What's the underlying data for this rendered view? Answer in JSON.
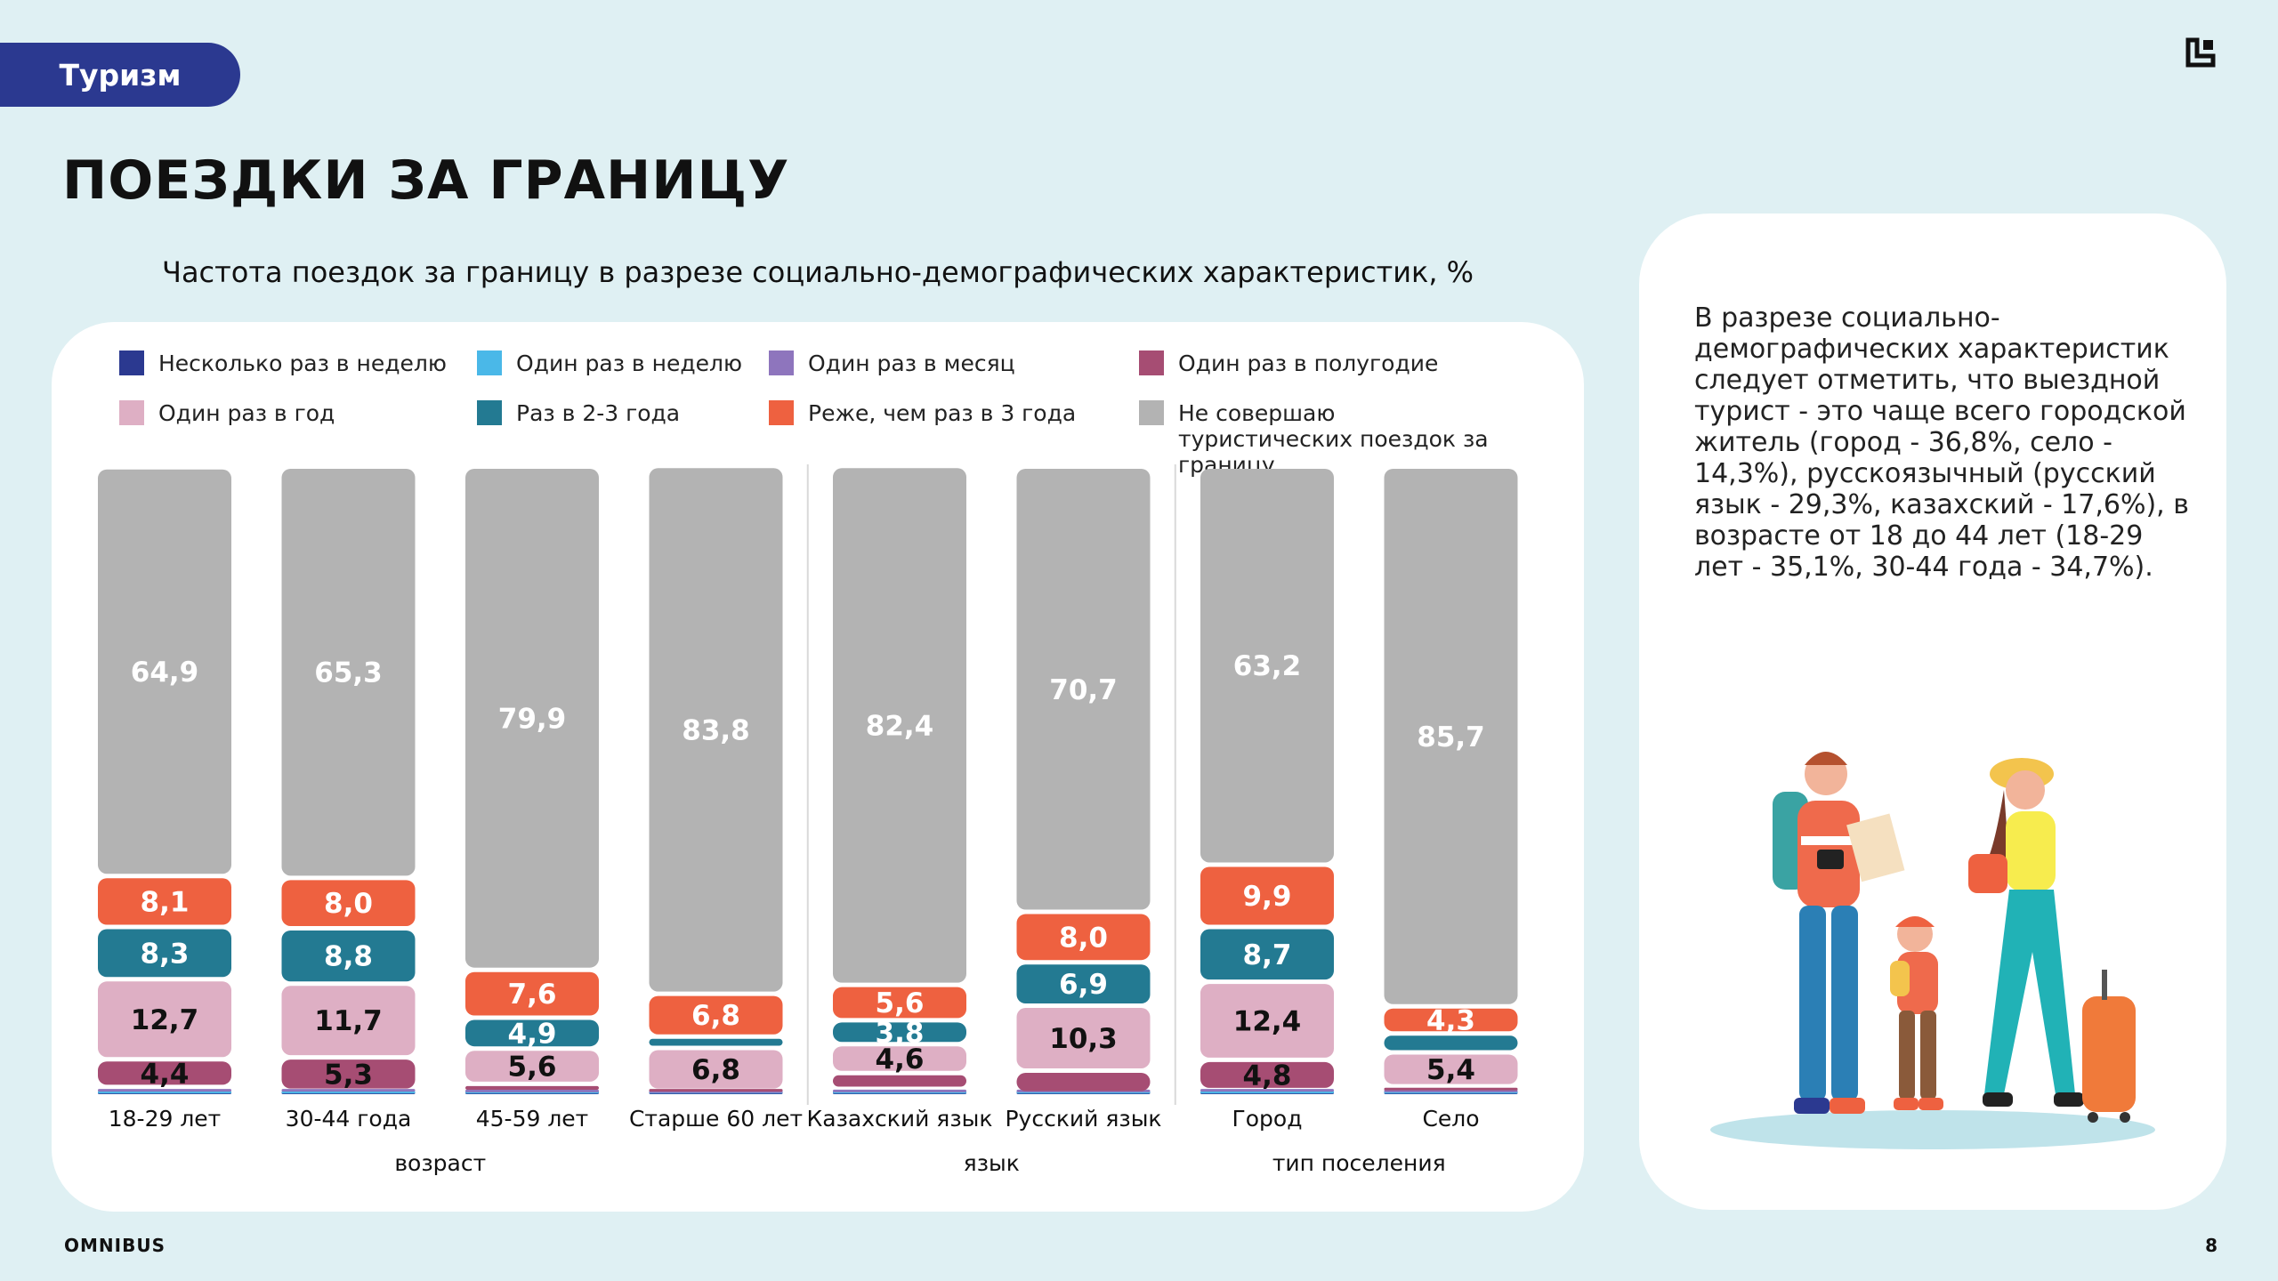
{
  "section_tag": "Туризм",
  "page_title": "ПОЕЗДКИ ЗА ГРАНИЦУ",
  "footer": {
    "brand": "OMNIBUS",
    "page_number": "8"
  },
  "side_text": "В разрезе социально-демографических характеристик следует отметить, что выездной турист - это чаще всего городской житель (город - 36,8%, село - 14,3%), русскоязычный (русский язык - 29,3%, казахский - 17,6%), в возрасте от 18 до 44 лет (18-29 лет - 35,1%, 30-44 года - 34,7%).",
  "chart_data": {
    "type": "bar",
    "stacked": true,
    "title": "Частота поездок за границу в разрезе социально-демографических характеристик, %",
    "categories": [
      "18-29 лет",
      "30-44 года",
      "45-59 лет",
      "Старше 60 лет",
      "Казахский язык",
      "Русский язык",
      "Город",
      "Село"
    ],
    "groups": [
      {
        "label": "возраст",
        "categories": [
          "18-29 лет",
          "30-44 года",
          "45-59 лет",
          "Старше 60 лет"
        ]
      },
      {
        "label": "язык",
        "categories": [
          "Казахский язык",
          "Русский язык"
        ]
      },
      {
        "label": "тип поселения",
        "categories": [
          "Город",
          "Село"
        ]
      }
    ],
    "series": [
      {
        "name": "Несколько раз в неделю",
        "color": "#2b3990",
        "values": [
          0.1,
          0.1,
          0.1,
          0.1,
          0.1,
          0.1,
          0.1,
          0.1
        ]
      },
      {
        "name": "Один раз в неделю",
        "color": "#4ab8e8",
        "values": [
          0.3,
          0.3,
          0.2,
          0.1,
          0.2,
          0.2,
          0.3,
          0.2
        ]
      },
      {
        "name": "Один раз в месяц",
        "color": "#8e75bd",
        "values": [
          1.1,
          0.5,
          0.4,
          0.2,
          0.9,
          0.2,
          0.6,
          0.3
        ]
      },
      {
        "name": "Один раз в полугодие",
        "color": "#a64d73",
        "values": [
          4.4,
          5.3,
          1.3,
          0.5,
          2.5,
          3.6,
          4.8,
          1.0
        ]
      },
      {
        "name": "Один раз в год",
        "color": "#deafc4",
        "values": [
          12.7,
          11.7,
          5.6,
          6.8,
          4.6,
          10.3,
          12.4,
          5.4
        ]
      },
      {
        "name": "Раз в 2-3 года",
        "color": "#237a92",
        "values": [
          8.3,
          8.8,
          4.9,
          1.8,
          3.8,
          6.9,
          8.7,
          3.0
        ]
      },
      {
        "name": "Реже, чем раз в 3 года",
        "color": "#ee6140",
        "values": [
          8.1,
          8.0,
          7.6,
          6.8,
          5.6,
          8.0,
          9.9,
          4.3
        ]
      },
      {
        "name": "Не совершаю туристических поездок за границу",
        "color": "#b3b3b3",
        "values": [
          64.9,
          65.3,
          79.9,
          83.8,
          82.4,
          70.7,
          63.2,
          85.7
        ]
      }
    ],
    "labels": [
      [
        null,
        null,
        null,
        "4,4",
        "12,7",
        "8,3",
        "8,1",
        "64,9"
      ],
      [
        null,
        null,
        null,
        "5,3",
        "11,7",
        "8,8",
        "8,0",
        "65,3"
      ],
      [
        null,
        null,
        null,
        null,
        "5,6",
        "4,9",
        "7,6",
        "79,9"
      ],
      [
        null,
        null,
        null,
        null,
        "6,8",
        null,
        "6,8",
        "83,8"
      ],
      [
        null,
        null,
        null,
        null,
        "4,6",
        "3,8",
        "5,6",
        "82,4"
      ],
      [
        null,
        null,
        null,
        null,
        "10,3",
        "6,9",
        "8,0",
        "70,7"
      ],
      [
        null,
        null,
        null,
        "4,8",
        "12,4",
        "8,7",
        "9,9",
        "63,2"
      ],
      [
        null,
        null,
        null,
        null,
        "5,4",
        null,
        "4,3",
        "85,7"
      ]
    ],
    "ylim": [
      0,
      100
    ]
  }
}
